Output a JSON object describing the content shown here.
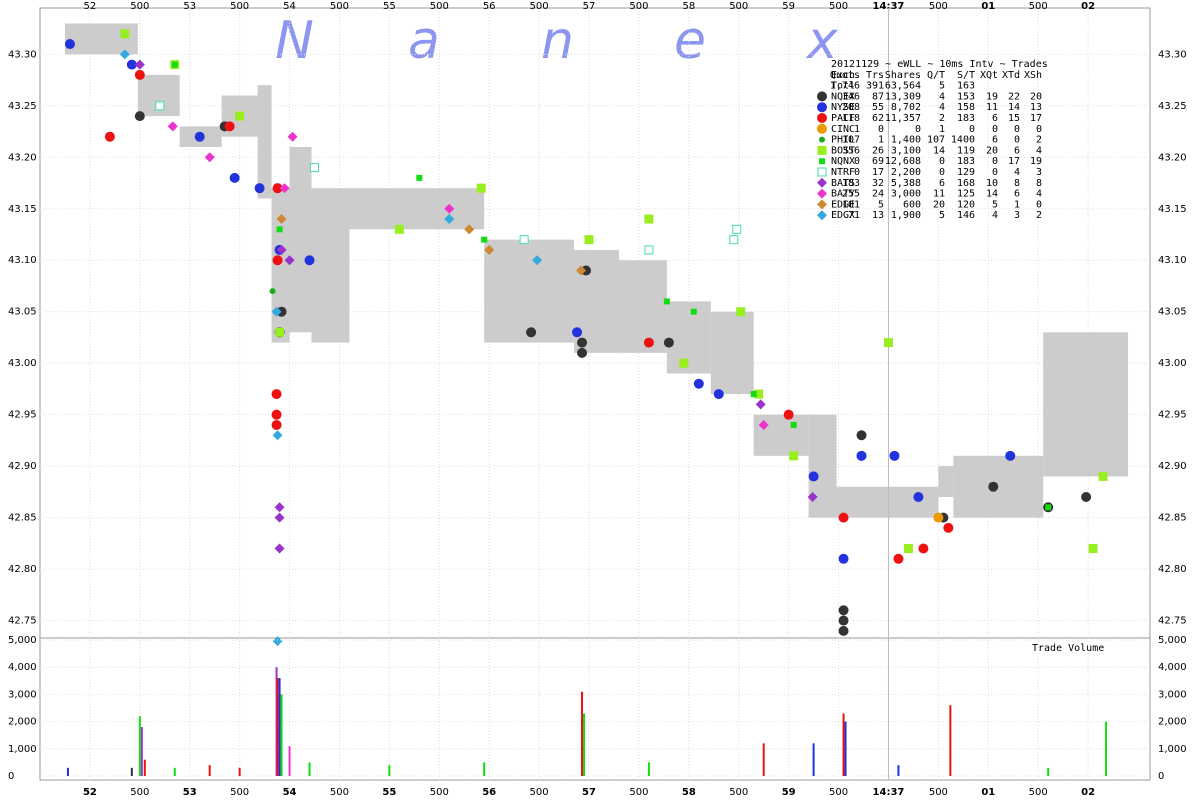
{
  "chart_data": [
    {
      "type": "scatter",
      "watermark": [
        "N",
        "a",
        "n",
        "e",
        "x"
      ],
      "title": "20121129 ~ eWLL ~ 10ms Intv ~ Trades",
      "stats_columns": [
        "Exch",
        "Quots",
        "Trs",
        "Shares",
        "Q/T",
        "S/T",
        "XQt",
        "XTd",
        "XSh"
      ],
      "totals": [
        "Totl",
        "1,746",
        "391",
        "63,564",
        "5",
        "163"
      ],
      "xlim": [
        51.5,
        62.62
      ],
      "xticks": [
        52,
        {
          "value": 52.5,
          "label": "500"
        },
        53,
        {
          "value": 53.5,
          "label": "500"
        },
        54,
        {
          "value": 54.5,
          "label": "500"
        },
        55,
        {
          "value": 55.5,
          "label": "500"
        },
        56,
        {
          "value": 56.5,
          "label": "500"
        },
        57,
        {
          "value": 57.5,
          "label": "500"
        },
        58,
        {
          "value": 58.5,
          "label": "500"
        },
        59,
        {
          "value": 59.5,
          "label": "500"
        },
        {
          "value": 60,
          "label": "14:37"
        },
        {
          "value": 60.5,
          "label": "500"
        },
        {
          "value": 61,
          "label": "01"
        },
        {
          "value": 61.5,
          "label": "500"
        },
        {
          "value": 62,
          "label": "02"
        }
      ],
      "ylim": [
        42.735,
        43.345
      ],
      "yticks": [
        42.75,
        {
          "value": 42.8,
          "label": "42.80"
        },
        42.85,
        {
          "value": 42.9,
          "label": "42.90"
        },
        42.95,
        {
          "value": 43.0,
          "label": "43.00"
        },
        43.05,
        {
          "value": 43.1,
          "label": "43.10"
        },
        43.15,
        {
          "value": 43.2,
          "label": "43.20"
        },
        43.25,
        {
          "value": 43.3,
          "label": "43.30"
        }
      ],
      "grid": true,
      "nbbo": {
        "color": "#cccccc",
        "x": [
          51.75,
          52.48,
          52.9,
          53.32,
          53.68,
          53.82,
          54.0,
          54.22,
          54.6,
          55.95,
          56.4,
          56.85,
          57.3,
          57.78,
          58.22,
          58.65,
          59.2,
          59.48,
          60.5,
          60.65,
          61.55,
          62.4
        ],
        "bid": [
          43.3,
          43.24,
          43.21,
          43.22,
          43.16,
          43.02,
          43.03,
          43.02,
          43.13,
          43.02,
          43.02,
          43.01,
          43.01,
          42.99,
          42.97,
          42.91,
          42.85,
          42.85,
          42.87,
          42.85,
          42.89
        ],
        "ask": [
          43.33,
          43.28,
          43.23,
          43.26,
          43.27,
          43.17,
          43.21,
          43.17,
          43.17,
          43.12,
          43.12,
          43.11,
          43.1,
          43.06,
          43.05,
          42.95,
          42.95,
          42.88,
          42.9,
          42.91,
          43.03
        ]
      },
      "series": [
        {
          "name": "NQEX",
          "color": "#333333",
          "marker": "circle",
          "stats": [
            "346",
            "87",
            "13,309",
            "4",
            "153",
            "19",
            "22",
            "20"
          ],
          "x": [
            52.5,
            53.35,
            53.92,
            53.9,
            56.42,
            56.93,
            56.93,
            56.97,
            57.8,
            59.73,
            60.55,
            61.6,
            61.05,
            61.98,
            59.55,
            59.55,
            59.55
          ],
          "values": [
            43.24,
            43.23,
            43.05,
            43.03,
            43.03,
            43.02,
            43.01,
            43.09,
            43.02,
            42.93,
            42.85,
            42.86,
            42.88,
            42.87,
            42.75,
            42.76,
            42.74
          ]
        },
        {
          "name": "NYSE",
          "color": "#2233dd",
          "marker": "circle",
          "stats": [
            "208",
            "55",
            "8,702",
            "4",
            "158",
            "11",
            "14",
            "13"
          ],
          "x": [
            51.8,
            52.42,
            53.1,
            53.45,
            53.7,
            53.9,
            54.2,
            56.88,
            58.1,
            58.3,
            59.73,
            60.06,
            60.3,
            61.22,
            59.25,
            59.55
          ],
          "values": [
            43.31,
            43.29,
            43.22,
            43.18,
            43.17,
            43.11,
            43.1,
            43.03,
            42.98,
            42.97,
            42.91,
            42.91,
            42.87,
            42.91,
            42.89,
            42.81
          ]
        },
        {
          "name": "PACF",
          "color": "#ee1111",
          "marker": "circle",
          "stats": [
            "118",
            "62",
            "11,357",
            "2",
            "183",
            "6",
            "15",
            "17"
          ],
          "x": [
            52.5,
            52.2,
            53.4,
            53.88,
            53.88,
            53.87,
            53.87,
            53.87,
            57.6,
            59.0,
            60.1,
            60.6,
            60.35,
            59.55
          ],
          "values": [
            43.28,
            43.22,
            43.23,
            43.17,
            43.1,
            42.97,
            42.95,
            42.94,
            43.02,
            42.95,
            42.81,
            42.84,
            42.82,
            42.85
          ]
        },
        {
          "name": "CINC",
          "color": "#ee9900",
          "marker": "circle",
          "stats": [
            "1",
            "0",
            "0",
            "1",
            "0",
            "0",
            "0",
            "0"
          ],
          "x": [
            60.5
          ],
          "values": [
            42.85
          ]
        },
        {
          "name": "PHIL",
          "color": "#22aa22",
          "marker": "small",
          "stats": [
            "107",
            "1",
            "1,400",
            "107",
            "1400",
            "6",
            "0",
            "2"
          ],
          "x": [
            53.83
          ],
          "values": [
            43.07
          ]
        },
        {
          "name": "BOST",
          "color": "#99ee22",
          "marker": "square",
          "stats": [
            "356",
            "26",
            "3,100",
            "14",
            "119",
            "20",
            "6",
            "4"
          ],
          "x": [
            52.35,
            52.85,
            53.5,
            53.9,
            55.1,
            55.92,
            57.0,
            57.6,
            57.95,
            58.7,
            59.05,
            60.0,
            62.15,
            62.05,
            60.2,
            58.52
          ],
          "values": [
            43.32,
            43.29,
            43.24,
            43.03,
            43.13,
            43.17,
            43.12,
            43.14,
            43.0,
            42.97,
            42.91,
            43.02,
            42.89,
            42.82,
            42.82,
            43.05
          ]
        },
        {
          "name": "NQNX",
          "color": "#11dd11",
          "marker": "square-small",
          "stats": [
            "0",
            "69",
            "12,608",
            "0",
            "183",
            "0",
            "17",
            "19"
          ],
          "x": [
            52.85,
            53.9,
            55.3,
            55.95,
            57.78,
            58.05,
            58.65,
            59.05,
            61.6
          ],
          "values": [
            43.29,
            43.13,
            43.18,
            43.12,
            43.06,
            43.05,
            42.97,
            42.94,
            42.86
          ]
        },
        {
          "name": "NTRF",
          "color": "#44ddaa",
          "marker": "square-open",
          "stats": [
            "0",
            "17",
            "2,200",
            "0",
            "129",
            "0",
            "4",
            "3"
          ],
          "x": [
            52.7,
            54.25,
            56.35,
            57.6,
            58.48,
            58.45
          ],
          "values": [
            43.25,
            43.19,
            43.12,
            43.11,
            43.13,
            43.12
          ]
        },
        {
          "name": "BATS",
          "color": "#9933cc",
          "marker": "diamond",
          "stats": [
            "183",
            "32",
            "5,388",
            "6",
            "168",
            "10",
            "8",
            "8"
          ],
          "x": [
            52.5,
            53.92,
            53.9,
            53.9,
            53.9,
            54.0,
            58.72,
            59.24
          ],
          "values": [
            43.29,
            43.11,
            42.86,
            42.85,
            42.82,
            43.1,
            42.96,
            42.87
          ]
        },
        {
          "name": "BATY",
          "color": "#ee33cc",
          "marker": "diamond",
          "stats": [
            "255",
            "24",
            "3,000",
            "11",
            "125",
            "14",
            "6",
            "4"
          ],
          "x": [
            52.83,
            53.2,
            54.03,
            53.95,
            55.6,
            58.75
          ],
          "values": [
            43.23,
            43.2,
            43.22,
            43.17,
            43.15,
            42.94
          ]
        },
        {
          "name": "EDGE",
          "color": "#cc8833",
          "marker": "diamond",
          "stats": [
            "101",
            "5",
            "600",
            "20",
            "120",
            "5",
            "1",
            "0"
          ],
          "x": [
            53.92,
            55.8,
            56.0,
            56.92
          ],
          "values": [
            43.14,
            43.13,
            43.11,
            43.09
          ]
        },
        {
          "name": "EDGX",
          "color": "#33aadd",
          "marker": "diamond",
          "stats": [
            "71",
            "13",
            "1,900",
            "5",
            "146",
            "4",
            "3",
            "2"
          ],
          "x": [
            52.35,
            53.87,
            53.88,
            53.88,
            55.6,
            56.48
          ],
          "values": [
            43.3,
            43.05,
            42.93,
            42.73,
            43.14,
            43.1
          ]
        }
      ]
    },
    {
      "type": "bar",
      "title": "Trade Volume",
      "xlim": [
        51.5,
        62.62
      ],
      "ylim": [
        0,
        5000
      ],
      "yticks": [
        0,
        {
          "value": 1000,
          "label": "1,000"
        },
        {
          "value": 2000,
          "label": "2,000"
        },
        {
          "value": 3000,
          "label": "3,000"
        },
        {
          "value": 4000,
          "label": "4,000"
        },
        {
          "value": 5000,
          "label": "5,000"
        }
      ],
      "grid": true,
      "x": [
        51.78,
        52.42,
        52.5,
        52.52,
        52.55,
        52.85,
        53.2,
        53.5,
        53.87,
        53.88,
        53.9,
        53.92,
        54.0,
        54.2,
        55.0,
        55.95,
        56.93,
        56.95,
        57.6,
        58.75,
        59.25,
        59.55,
        59.57,
        60.1,
        60.62,
        61.6,
        62.18
      ],
      "values": [
        300,
        300,
        2200,
        1800,
        600,
        300,
        400,
        300,
        4000,
        3600,
        3600,
        3000,
        1100,
        500,
        400,
        500,
        3100,
        2300,
        500,
        1200,
        1200,
        2300,
        2000,
        400,
        2600,
        300,
        2000
      ],
      "colors": [
        "#2233dd",
        "#333333",
        "#11dd11",
        "#9933cc",
        "#ee1111",
        "#11dd11",
        "#ee1111",
        "#ee1111",
        "#9933cc",
        "#ee1111",
        "#2233dd",
        "#11dd11",
        "#ee33cc",
        "#11dd11",
        "#11dd11",
        "#11dd11",
        "#ee1111",
        "#11dd11",
        "#11dd11",
        "#ee1111",
        "#2233dd",
        "#ee1111",
        "#2233dd",
        "#2233dd",
        "#ee1111",
        "#11dd11",
        "#11dd11"
      ]
    }
  ]
}
